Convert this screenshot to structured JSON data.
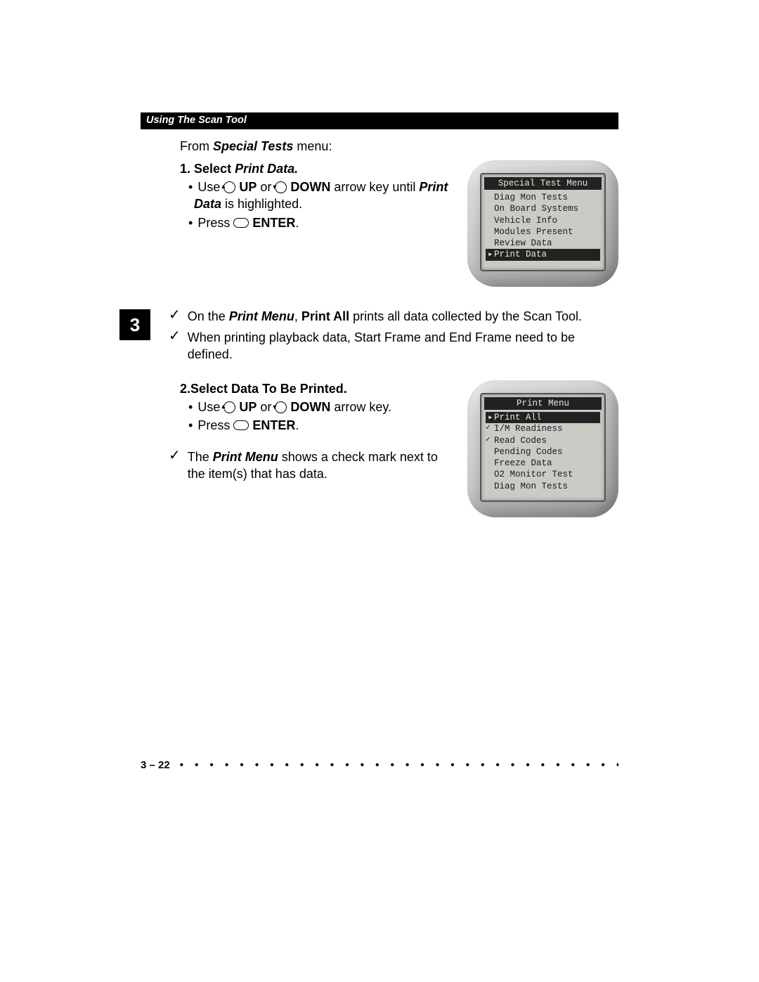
{
  "header": "Using The Scan Tool",
  "tab_number": "3",
  "intro_prefix": "From ",
  "intro_bold": "Special Tests",
  "intro_suffix": " menu:",
  "step1": {
    "num": "1.",
    "title_prefix": "Select ",
    "title_italic": "Print Data.",
    "line1_a": "Use ",
    "line1_b": " UP",
    "line1_c": " or ",
    "line1_d": " DOWN",
    "line1_e": " arrow key until ",
    "line1_f": "Print Data",
    "line1_g": " is highlighted.",
    "line2_a": "Press ",
    "line2_b": " ENTER",
    "line2_c": "."
  },
  "device1": {
    "title": "Special Test Menu",
    "items": [
      {
        "label": "Diag Mon Tests",
        "selected": false,
        "pointer": false,
        "check": false
      },
      {
        "label": "On Board Systems",
        "selected": false,
        "pointer": false,
        "check": false
      },
      {
        "label": "Vehicle Info",
        "selected": false,
        "pointer": false,
        "check": false
      },
      {
        "label": "Modules Present",
        "selected": false,
        "pointer": false,
        "check": false
      },
      {
        "label": "Review Data",
        "selected": false,
        "pointer": false,
        "check": false
      },
      {
        "label": "Print Data",
        "selected": true,
        "pointer": true,
        "check": false
      }
    ]
  },
  "note1_a": "On the ",
  "note1_b": "Print Menu",
  "note1_c": ", ",
  "note1_d": "Print All",
  "note1_e": " prints all data collected by the Scan Tool.",
  "note2": "When printing playback data, Start Frame and End Frame need to be defined.",
  "step2": {
    "num": "2.",
    "title": "Select Data To Be Printed.",
    "line1_a": "Use ",
    "line1_b": " UP",
    "line1_c": " or ",
    "line1_d": " DOWN",
    "line1_e": " arrow key.",
    "line2_a": "Press ",
    "line2_b": " ENTER",
    "line2_c": "."
  },
  "device2": {
    "title": "Print Menu",
    "items": [
      {
        "label": "Print All",
        "selected": true,
        "pointer": true,
        "check": false
      },
      {
        "label": "I/M Readiness",
        "selected": false,
        "pointer": false,
        "check": true
      },
      {
        "label": "Read Codes",
        "selected": false,
        "pointer": false,
        "check": true
      },
      {
        "label": "Pending Codes",
        "selected": false,
        "pointer": false,
        "check": false
      },
      {
        "label": "Freeze Data",
        "selected": false,
        "pointer": false,
        "check": false
      },
      {
        "label": "O2 Monitor Test",
        "selected": false,
        "pointer": false,
        "check": false
      },
      {
        "label": "Diag Mon Tests",
        "selected": false,
        "pointer": false,
        "check": false
      }
    ]
  },
  "note3_a": "The ",
  "note3_b": "Print Menu",
  "note3_c": " shows a check mark next to the item(s) that has data.",
  "footer_page": "3 – 22",
  "colors": {
    "page_bg": "#ffffff",
    "bar_bg": "#000000",
    "bar_fg": "#ffffff",
    "device_body_light": "#d9d9d9",
    "device_body_dark": "#9a9a9a",
    "screen_bg": "#c8ccc4",
    "screen_fg": "#1a1a1a",
    "screen_sel_bg": "#222222",
    "screen_sel_fg": "#e8e8e0"
  },
  "fonts": {
    "body_family": "Arial",
    "body_size_pt": 13,
    "header_size_pt": 11,
    "screen_family": "Courier New",
    "screen_size_pt": 9
  }
}
